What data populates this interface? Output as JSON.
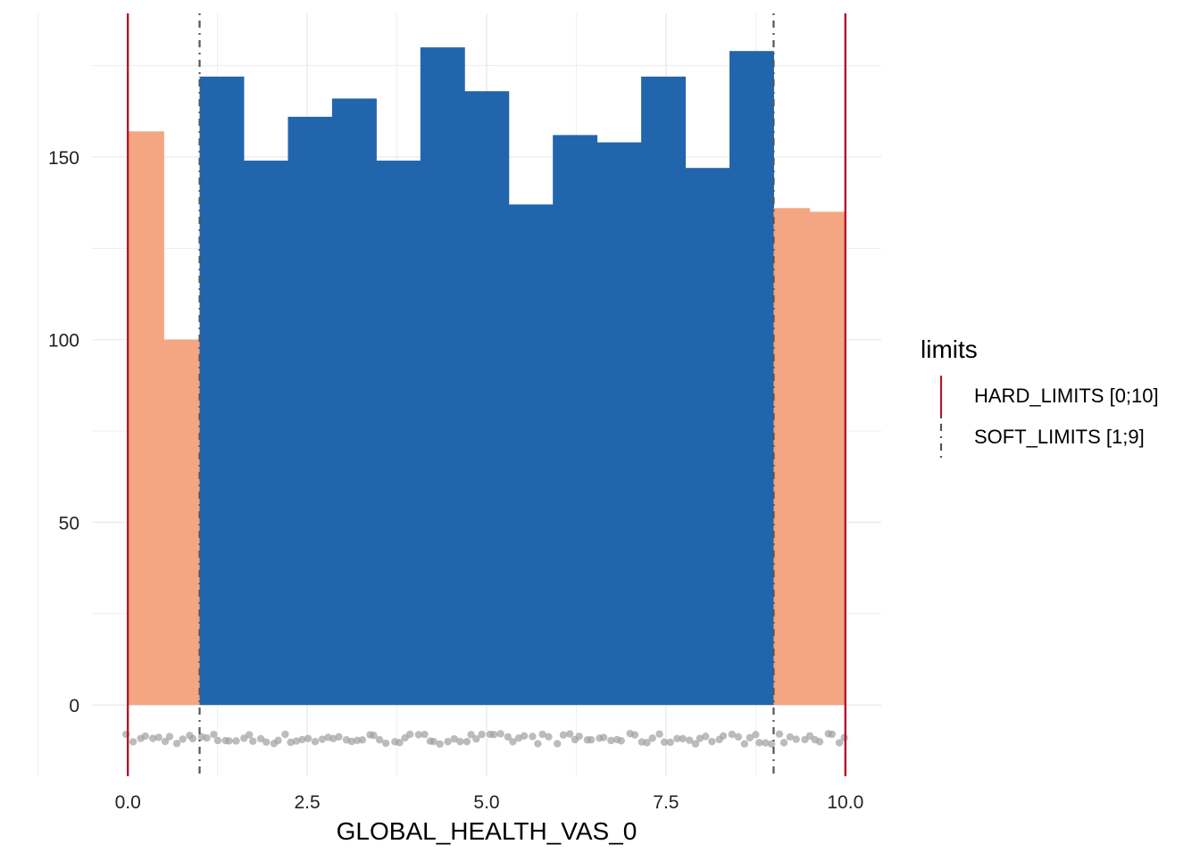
{
  "chart_data": {
    "type": "bar",
    "title": "",
    "xlabel": "GLOBAL_HEALTH_VAS_0",
    "ylabel": "",
    "xlim": [
      -0.5,
      10.5
    ],
    "ylim": [
      -19.5,
      189.3
    ],
    "x_ticks": [
      0,
      2.5,
      5,
      7.5,
      10
    ],
    "x_tick_labels": [
      "0.0",
      "2.5",
      "5.0",
      "7.5",
      "10.0"
    ],
    "y_ticks": [
      0,
      50,
      100,
      150
    ],
    "y_tick_labels": [
      "0",
      "50",
      "100",
      "150"
    ],
    "grid": true,
    "bars": [
      {
        "x0": 0,
        "x1": 0.5,
        "value": 157,
        "group": "out_of_soft"
      },
      {
        "x0": 0.5,
        "x1": 1,
        "value": 100,
        "group": "out_of_soft"
      },
      {
        "x0": 1.0,
        "x1": 1.615,
        "value": 172,
        "group": "in_soft"
      },
      {
        "x0": 1.615,
        "x1": 2.231,
        "value": 149,
        "group": "in_soft"
      },
      {
        "x0": 2.231,
        "x1": 2.846,
        "value": 161,
        "group": "in_soft"
      },
      {
        "x0": 2.846,
        "x1": 3.462,
        "value": 166,
        "group": "in_soft"
      },
      {
        "x0": 3.462,
        "x1": 4.077,
        "value": 149,
        "group": "in_soft"
      },
      {
        "x0": 4.077,
        "x1": 4.692,
        "value": 180,
        "group": "in_soft"
      },
      {
        "x0": 4.692,
        "x1": 5.308,
        "value": 168,
        "group": "in_soft"
      },
      {
        "x0": 5.308,
        "x1": 5.923,
        "value": 137,
        "group": "in_soft"
      },
      {
        "x0": 5.923,
        "x1": 6.538,
        "value": 156,
        "group": "in_soft"
      },
      {
        "x0": 6.538,
        "x1": 7.154,
        "value": 154,
        "group": "in_soft"
      },
      {
        "x0": 7.154,
        "x1": 7.769,
        "value": 172,
        "group": "in_soft"
      },
      {
        "x0": 7.769,
        "x1": 8.385,
        "value": 147,
        "group": "in_soft"
      },
      {
        "x0": 8.385,
        "x1": 9.0,
        "value": 179,
        "group": "in_soft"
      },
      {
        "x0": 9,
        "x1": 9.5,
        "value": 136,
        "group": "out_of_soft"
      },
      {
        "x0": 9.5,
        "x1": 10,
        "value": 135,
        "group": "out_of_soft"
      }
    ],
    "colors": {
      "in_soft": "#2166ac",
      "out_of_soft": "#f4a582",
      "hard": "#b2182b",
      "soft": "#555555",
      "points": "#a0a0a0"
    },
    "vlines": [
      {
        "x": 0,
        "type": "HARD_LIMITS"
      },
      {
        "x": 10,
        "type": "HARD_LIMITS"
      },
      {
        "x": 1,
        "type": "SOFT_LIMITS"
      },
      {
        "x": 9,
        "type": "SOFT_LIMITS"
      }
    ],
    "jitter_points": {
      "count": 120,
      "x_range": [
        0,
        10
      ],
      "y_range": [
        -10.7,
        -7.8
      ]
    },
    "legend": {
      "title": "limits",
      "placement": "right",
      "entries": [
        {
          "label": "HARD_LIMITS [0;10]",
          "style": "solid"
        },
        {
          "label": "SOFT_LIMITS [1;9]",
          "style": "dotdash"
        }
      ]
    }
  }
}
